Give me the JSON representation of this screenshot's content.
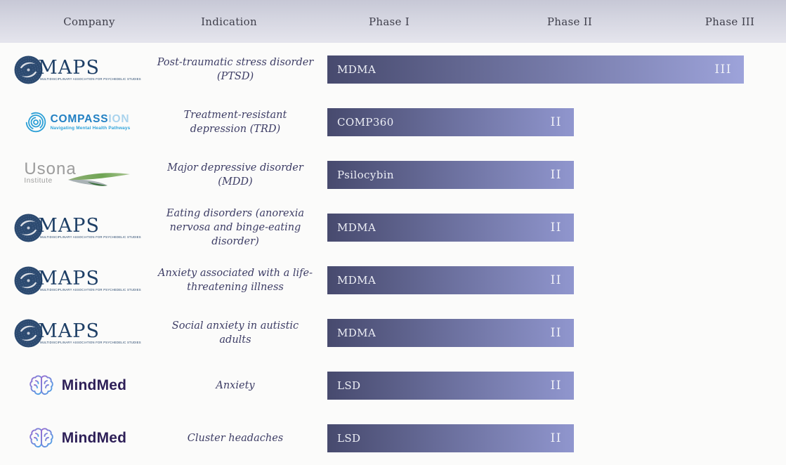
{
  "header": {
    "columns": [
      "Company",
      "Indication",
      "Phase I",
      "Phase II",
      "Phase III"
    ]
  },
  "chart_data": {
    "type": "bar",
    "orientation": "horizontal",
    "title": "",
    "columns": [
      "Company",
      "Indication",
      "Phase I",
      "Phase II",
      "Phase III"
    ],
    "phase_scale": [
      "I",
      "II",
      "III"
    ],
    "rows": [
      {
        "company": "MAPS",
        "logo": "maps",
        "indication": "Post-traumatic stress disorder (PTSD)",
        "drug": "MDMA",
        "phase_label": "III",
        "phase_value": 3
      },
      {
        "company": "COMPASS Pathways",
        "logo": "compass",
        "indication": "Treatment-resistant depression (TRD)",
        "drug": "COMP360",
        "phase_label": "II",
        "phase_value": 2
      },
      {
        "company": "Usona Institute",
        "logo": "usona",
        "indication": "Major depressive disorder (MDD)",
        "drug": "Psilocybin",
        "phase_label": "II",
        "phase_value": 2
      },
      {
        "company": "MAPS",
        "logo": "maps",
        "indication": "Eating disorders (anorexia nervosa and binge-eating disorder)",
        "drug": "MDMA",
        "phase_label": "II",
        "phase_value": 2
      },
      {
        "company": "MAPS",
        "logo": "maps",
        "indication": "Anxiety associated with a life-threatening illness",
        "drug": "MDMA",
        "phase_label": "II",
        "phase_value": 2
      },
      {
        "company": "MAPS",
        "logo": "maps",
        "indication": "Social anxiety in autistic adults",
        "drug": "MDMA",
        "phase_label": "II",
        "phase_value": 2
      },
      {
        "company": "MindMed",
        "logo": "mindmed",
        "indication": "Anxiety",
        "drug": "LSD",
        "phase_label": "II",
        "phase_value": 2
      },
      {
        "company": "MindMed",
        "logo": "mindmed",
        "indication": "Cluster headaches",
        "drug": "LSD",
        "phase_label": "II",
        "phase_value": 2
      }
    ]
  },
  "logos": {
    "maps": {
      "name": "MAPS",
      "subtext": "MULTIDISCIPLINARY ASSOCIATION FOR PSYCHEDELIC STUDIES"
    },
    "compass": {
      "name": "COMPASS",
      "suffix": "ION",
      "tagline": "Navigating Mental Health Pathways"
    },
    "usona": {
      "name": "Usona",
      "subtext": "Institute"
    },
    "mindmed": {
      "name": "MindMed"
    }
  },
  "colors": {
    "bar_dark": "#474a6e",
    "bar_light_phase2": "#9096ce",
    "bar_light_phase3": "#9da3da",
    "bar_text": "#edeff6",
    "header_bg_top": "#c7c8d6",
    "header_bg_bottom": "#e5e5ed",
    "page_bg": "#fbfbfa",
    "indication_text": "#3d3d65",
    "maps_navy": "#1e3f66",
    "compass_blue": "#2280c3",
    "compass_light_blue": "#2ca2da",
    "usona_gray": "#9c9c9c",
    "usona_green": "#6fa554",
    "mindmed_plum": "#2d1f57",
    "mindmed_purple": "#9a6bd0",
    "mindmed_blue": "#4aa8e8"
  }
}
